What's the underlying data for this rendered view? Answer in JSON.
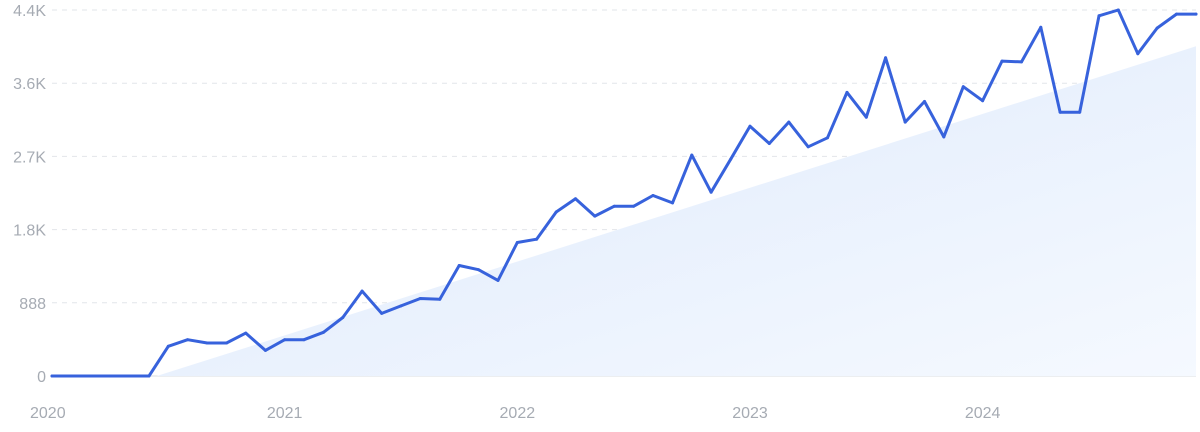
{
  "chart_data": {
    "type": "line",
    "title": "",
    "xlabel": "",
    "ylabel": "",
    "x_ticks": [
      "2020",
      "2021",
      "2022",
      "2023",
      "2024"
    ],
    "y_ticks": [
      "0",
      "888",
      "1.8K",
      "2.7K",
      "3.6K",
      "4.4K"
    ],
    "y_tick_values": [
      0,
      888,
      1776,
      2664,
      3552,
      4440
    ],
    "ylim": [
      0,
      4440
    ],
    "xlim": [
      2020.0,
      2024.917
    ],
    "grid": true,
    "legend": "none",
    "trend_fill": {
      "start": [
        2020.45,
        0
      ],
      "end": [
        2024.917,
        4000
      ]
    },
    "series": [
      {
        "values": [
          [
            2020.0,
            0
          ],
          [
            2020.083,
            0
          ],
          [
            2020.167,
            0
          ],
          [
            2020.25,
            0
          ],
          [
            2020.333,
            0
          ],
          [
            2020.417,
            0
          ],
          [
            2020.5,
            360
          ],
          [
            2020.583,
            440
          ],
          [
            2020.667,
            400
          ],
          [
            2020.75,
            400
          ],
          [
            2020.833,
            520
          ],
          [
            2020.917,
            310
          ],
          [
            2021.0,
            440
          ],
          [
            2021.083,
            440
          ],
          [
            2021.167,
            530
          ],
          [
            2021.25,
            710
          ],
          [
            2021.333,
            1030
          ],
          [
            2021.417,
            760
          ],
          [
            2021.5,
            850
          ],
          [
            2021.583,
            940
          ],
          [
            2021.667,
            930
          ],
          [
            2021.75,
            1340
          ],
          [
            2021.833,
            1290
          ],
          [
            2021.917,
            1160
          ],
          [
            2022.0,
            1620
          ],
          [
            2022.083,
            1660
          ],
          [
            2022.167,
            1990
          ],
          [
            2022.25,
            2150
          ],
          [
            2022.333,
            1940
          ],
          [
            2022.417,
            2060
          ],
          [
            2022.5,
            2060
          ],
          [
            2022.583,
            2190
          ],
          [
            2022.667,
            2100
          ],
          [
            2022.75,
            2680
          ],
          [
            2022.833,
            2230
          ],
          [
            2022.917,
            2630
          ],
          [
            2023.0,
            3030
          ],
          [
            2023.083,
            2820
          ],
          [
            2023.167,
            3080
          ],
          [
            2023.25,
            2780
          ],
          [
            2023.333,
            2890
          ],
          [
            2023.417,
            3440
          ],
          [
            2023.5,
            3140
          ],
          [
            2023.583,
            3860
          ],
          [
            2023.667,
            3080
          ],
          [
            2023.75,
            3330
          ],
          [
            2023.833,
            2900
          ],
          [
            2023.917,
            3510
          ],
          [
            2024.0,
            3340
          ],
          [
            2024.083,
            3820
          ],
          [
            2024.167,
            3810
          ],
          [
            2024.25,
            4230
          ],
          [
            2024.333,
            3200
          ],
          [
            2024.417,
            3200
          ],
          [
            2024.5,
            4370
          ],
          [
            2024.583,
            4440
          ],
          [
            2024.667,
            3910
          ],
          [
            2024.75,
            4220
          ],
          [
            2024.833,
            4390
          ],
          [
            2024.917,
            4390
          ]
        ]
      }
    ]
  },
  "colors": {
    "line": "#3762dc",
    "fill_top": "#dde9fb",
    "fill_bottom": "#f5f9ff",
    "grid": "#e2e5ea",
    "axis": "#d8dce2",
    "tick_text": "#a6abb3"
  }
}
